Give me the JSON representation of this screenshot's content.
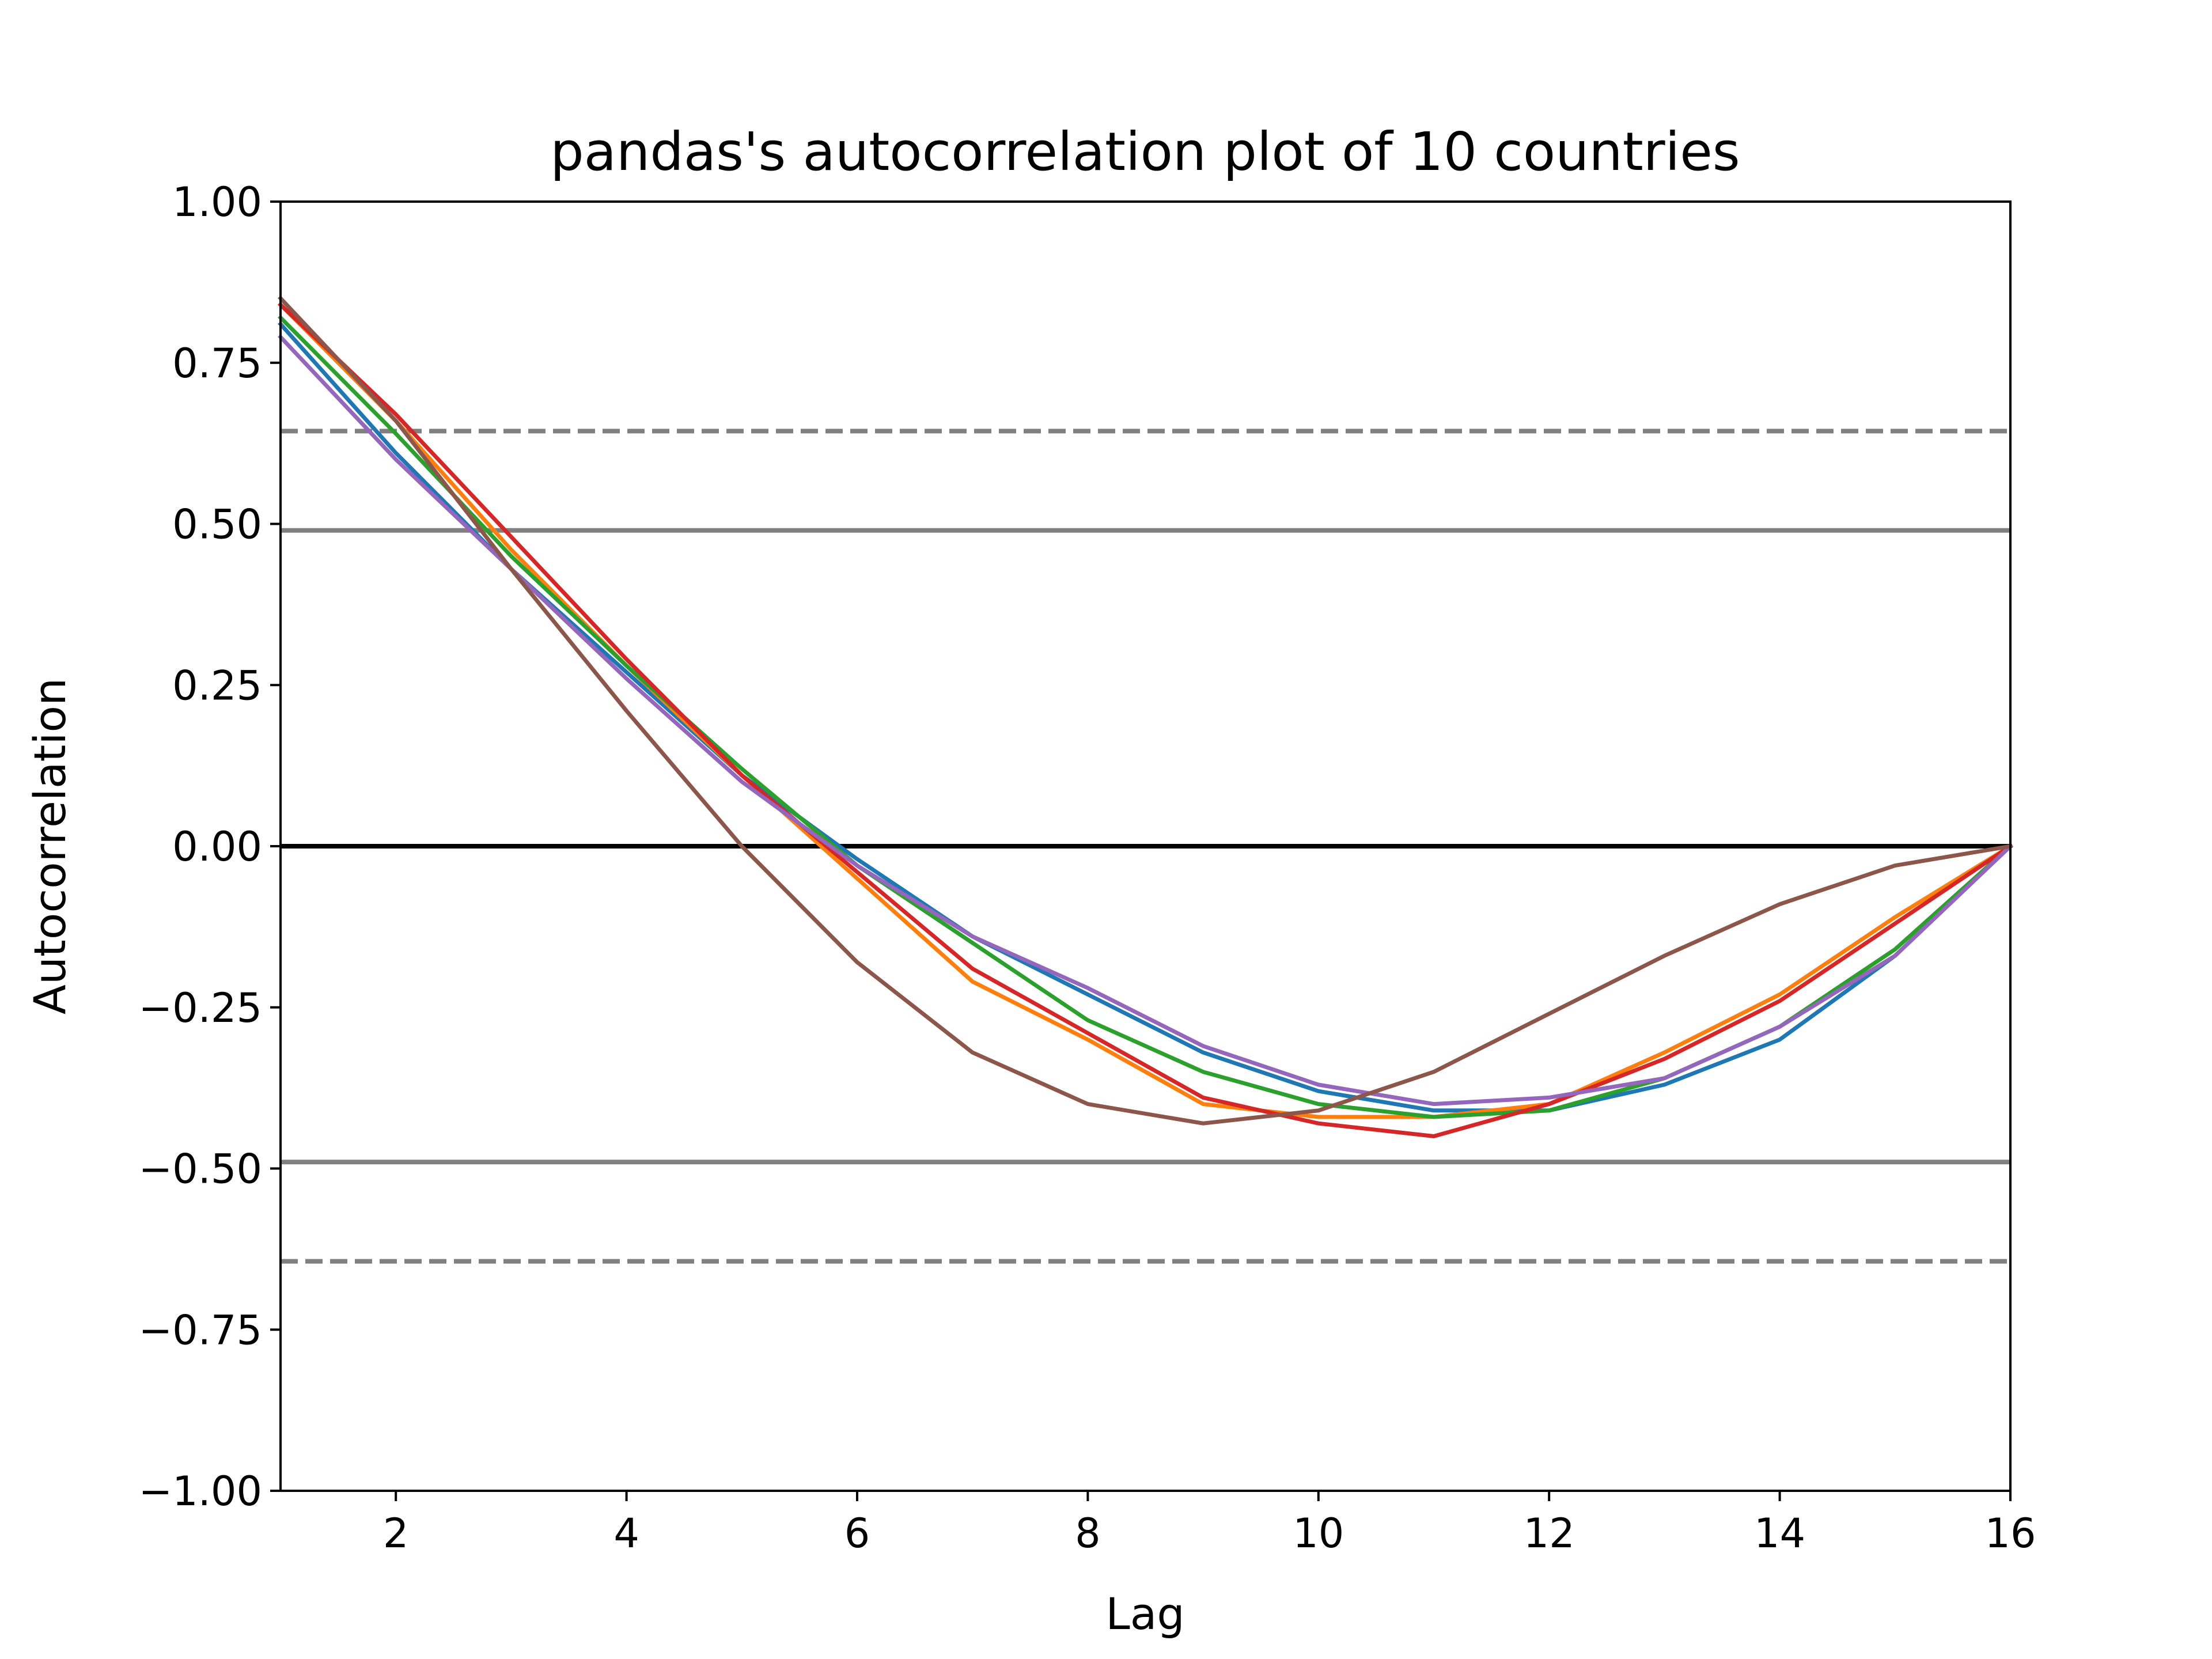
{
  "chart_data": {
    "type": "line",
    "title": "pandas's autocorrelation plot of 10 countries",
    "xlabel": "Lag",
    "ylabel": "Autocorrelation",
    "xlim": [
      1,
      16
    ],
    "ylim": [
      -1,
      1
    ],
    "xticks": [
      2,
      4,
      6,
      8,
      10,
      12,
      14,
      16
    ],
    "xtick_labels": [
      "2",
      "4",
      "6",
      "8",
      "10",
      "12",
      "14",
      "16"
    ],
    "yticks": [
      1.0,
      0.75,
      0.5,
      0.25,
      0.0,
      -0.25,
      -0.5,
      -0.75,
      -1.0
    ],
    "ytick_labels": [
      "1.00",
      "0.75",
      "0.50",
      "0.25",
      "0.00",
      "−0.25",
      "−0.50",
      "−0.75",
      "−1.00"
    ],
    "grid": false,
    "x": [
      1,
      2,
      3,
      4,
      5,
      6,
      7,
      8,
      9,
      10,
      11,
      12,
      13,
      14,
      15,
      16
    ],
    "reference_lines": [
      {
        "y": 0.0,
        "style": "solid",
        "color": "#000000"
      },
      {
        "y": 0.49,
        "style": "solid",
        "color": "#808080"
      },
      {
        "y": -0.49,
        "style": "solid",
        "color": "#808080"
      },
      {
        "y": 0.644,
        "style": "dashed",
        "color": "#808080"
      },
      {
        "y": -0.644,
        "style": "dashed",
        "color": "#808080"
      }
    ],
    "series": [
      {
        "color": "#1f77b4",
        "values": [
          0.81,
          0.61,
          0.43,
          0.27,
          0.11,
          -0.02,
          -0.14,
          -0.23,
          -0.32,
          -0.38,
          -0.41,
          -0.41,
          -0.37,
          -0.3,
          -0.17,
          0.0
        ]
      },
      {
        "color": "#ff7f0e",
        "values": [
          0.84,
          0.66,
          0.46,
          0.28,
          0.11,
          -0.05,
          -0.21,
          -0.3,
          -0.4,
          -0.42,
          -0.42,
          -0.4,
          -0.32,
          -0.23,
          -0.11,
          0.0
        ]
      },
      {
        "color": "#2ca02c",
        "values": [
          0.82,
          0.64,
          0.45,
          0.28,
          0.12,
          -0.03,
          -0.15,
          -0.27,
          -0.35,
          -0.4,
          -0.42,
          -0.41,
          -0.36,
          -0.28,
          -0.16,
          0.0
        ]
      },
      {
        "color": "#d62728",
        "values": [
          0.84,
          0.67,
          0.48,
          0.29,
          0.11,
          -0.04,
          -0.19,
          -0.29,
          -0.39,
          -0.43,
          -0.45,
          -0.4,
          -0.33,
          -0.24,
          -0.12,
          0.0
        ]
      },
      {
        "color": "#9467bd",
        "values": [
          0.79,
          0.6,
          0.43,
          0.26,
          0.1,
          -0.03,
          -0.14,
          -0.22,
          -0.31,
          -0.37,
          -0.4,
          -0.39,
          -0.36,
          -0.28,
          -0.17,
          0.0
        ]
      },
      {
        "color": "#8c564b",
        "values": [
          0.85,
          0.66,
          0.43,
          0.21,
          0.0,
          -0.18,
          -0.32,
          -0.4,
          -0.43,
          -0.41,
          -0.35,
          -0.26,
          -0.17,
          -0.09,
          -0.03,
          0.0
        ]
      }
    ]
  }
}
